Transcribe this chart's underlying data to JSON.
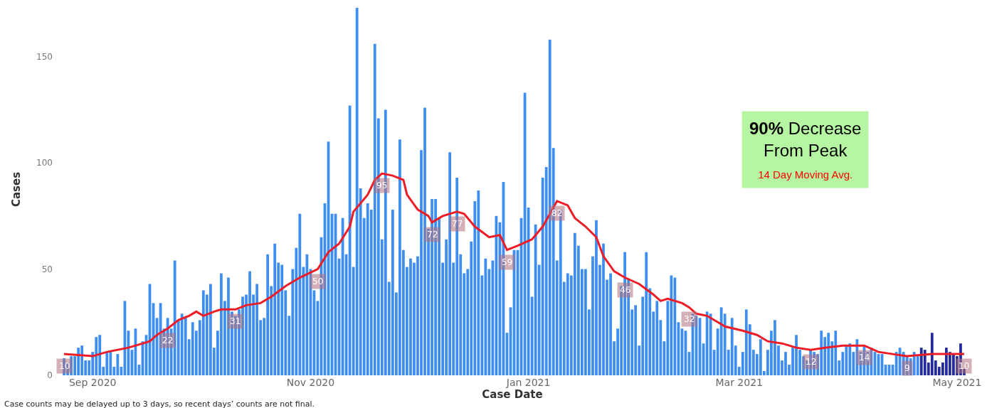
{
  "chart_data": {
    "type": "bar",
    "xlabel": "Case Date",
    "ylabel": "Cases",
    "xlim": [
      "2020-08-21",
      "2021-05-05"
    ],
    "xticks": [
      {
        "value": "2020-09-01",
        "label": "Sep 2020"
      },
      {
        "value": "2020-11-01",
        "label": "Nov 2020"
      },
      {
        "value": "2021-01-01",
        "label": "Jan 2021"
      },
      {
        "value": "2021-03-01",
        "label": "Mar 2021"
      },
      {
        "value": "2021-05-01",
        "label": "May 2021"
      }
    ],
    "ylim": [
      0,
      175
    ],
    "yticks": [
      0,
      50,
      100,
      150
    ],
    "grid": false,
    "annotations": [
      "90% Decrease\nFrom Peak",
      "14 Day Moving Avg.",
      "Case counts may be delayed up to 3 days, so recent days’ counts are not final."
    ],
    "series": [
      {
        "color": "#3d8ef0",
        "x": [
          "2020-08-24",
          "2020-08-25",
          "2020-08-26",
          "2020-08-27",
          "2020-08-28",
          "2020-08-29",
          "2020-08-30",
          "2020-08-31",
          "2020-09-01",
          "2020-09-02",
          "2020-09-03",
          "2020-09-04",
          "2020-09-05",
          "2020-09-06",
          "2020-09-07",
          "2020-09-08",
          "2020-09-09",
          "2020-09-10",
          "2020-09-11",
          "2020-09-12",
          "2020-09-13",
          "2020-09-14",
          "2020-09-15",
          "2020-09-16",
          "2020-09-17",
          "2020-09-18",
          "2020-09-19",
          "2020-09-20",
          "2020-09-21",
          "2020-09-22",
          "2020-09-23",
          "2020-09-24",
          "2020-09-25",
          "2020-09-26",
          "2020-09-27",
          "2020-09-28",
          "2020-09-29",
          "2020-09-30",
          "2020-10-01",
          "2020-10-02",
          "2020-10-03",
          "2020-10-04",
          "2020-10-05",
          "2020-10-06",
          "2020-10-07",
          "2020-10-08",
          "2020-10-09",
          "2020-10-10",
          "2020-10-11",
          "2020-10-12",
          "2020-10-13",
          "2020-10-14",
          "2020-10-15",
          "2020-10-16",
          "2020-10-17",
          "2020-10-18",
          "2020-10-19",
          "2020-10-20",
          "2020-10-21",
          "2020-10-22",
          "2020-10-23",
          "2020-10-24",
          "2020-10-25",
          "2020-10-26",
          "2020-10-27",
          "2020-10-28",
          "2020-10-29",
          "2020-10-30",
          "2020-10-31",
          "2020-11-01",
          "2020-11-02",
          "2020-11-03",
          "2020-11-04",
          "2020-11-05",
          "2020-11-06",
          "2020-11-07",
          "2020-11-08",
          "2020-11-09",
          "2020-11-10",
          "2020-11-11",
          "2020-11-12",
          "2020-11-13",
          "2020-11-14",
          "2020-11-15",
          "2020-11-16",
          "2020-11-17",
          "2020-11-18",
          "2020-11-19",
          "2020-11-20",
          "2020-11-21",
          "2020-11-22",
          "2020-11-23",
          "2020-11-24",
          "2020-11-25",
          "2020-11-26",
          "2020-11-27",
          "2020-11-28",
          "2020-11-29",
          "2020-11-30",
          "2020-12-01",
          "2020-12-02",
          "2020-12-03",
          "2020-12-04",
          "2020-12-05",
          "2020-12-06",
          "2020-12-07",
          "2020-12-08",
          "2020-12-09",
          "2020-12-10",
          "2020-12-11",
          "2020-12-12",
          "2020-12-13",
          "2020-12-14",
          "2020-12-15",
          "2020-12-16",
          "2020-12-17",
          "2020-12-18",
          "2020-12-19",
          "2020-12-20",
          "2020-12-21",
          "2020-12-22",
          "2020-12-23",
          "2020-12-24",
          "2020-12-25",
          "2020-12-26",
          "2020-12-27",
          "2020-12-28",
          "2020-12-29",
          "2020-12-30",
          "2020-12-31",
          "2021-01-01",
          "2021-01-02",
          "2021-01-03",
          "2021-01-04",
          "2021-01-05",
          "2021-01-06",
          "2021-01-07",
          "2021-01-08",
          "2021-01-09",
          "2021-01-10",
          "2021-01-11",
          "2021-01-12",
          "2021-01-13",
          "2021-01-14",
          "2021-01-15",
          "2021-01-16",
          "2021-01-17",
          "2021-01-18",
          "2021-01-19",
          "2021-01-20",
          "2021-01-21",
          "2021-01-22",
          "2021-01-23",
          "2021-01-24",
          "2021-01-25",
          "2021-01-26",
          "2021-01-27",
          "2021-01-28",
          "2021-01-29",
          "2021-01-30",
          "2021-01-31",
          "2021-02-01",
          "2021-02-02",
          "2021-02-03",
          "2021-02-04",
          "2021-02-05",
          "2021-02-06",
          "2021-02-07",
          "2021-02-08",
          "2021-02-09",
          "2021-02-10",
          "2021-02-11",
          "2021-02-12",
          "2021-02-13",
          "2021-02-14",
          "2021-02-15",
          "2021-02-16",
          "2021-02-17",
          "2021-02-18",
          "2021-02-19",
          "2021-02-20",
          "2021-02-21",
          "2021-02-22",
          "2021-02-23",
          "2021-02-24",
          "2021-02-25",
          "2021-02-26",
          "2021-02-27",
          "2021-02-28",
          "2021-03-01",
          "2021-03-02",
          "2021-03-03",
          "2021-03-04",
          "2021-03-05",
          "2021-03-06",
          "2021-03-07",
          "2021-03-08",
          "2021-03-09",
          "2021-03-10",
          "2021-03-11",
          "2021-03-12",
          "2021-03-13",
          "2021-03-14",
          "2021-03-15",
          "2021-03-16",
          "2021-03-17",
          "2021-03-18",
          "2021-03-19",
          "2021-03-20",
          "2021-03-21",
          "2021-03-22",
          "2021-03-23",
          "2021-03-24",
          "2021-03-25",
          "2021-03-26",
          "2021-03-27",
          "2021-03-28",
          "2021-03-29",
          "2021-03-30",
          "2021-03-31",
          "2021-04-01",
          "2021-04-02",
          "2021-04-03",
          "2021-04-04",
          "2021-04-05",
          "2021-04-06",
          "2021-04-07",
          "2021-04-08",
          "2021-04-09",
          "2021-04-10",
          "2021-04-11",
          "2021-04-12",
          "2021-04-13",
          "2021-04-14",
          "2021-04-15",
          "2021-04-16",
          "2021-04-17",
          "2021-04-18",
          "2021-04-19",
          "2021-04-20"
        ],
        "values": [
          8,
          6,
          9,
          9,
          13,
          14,
          7,
          7,
          11,
          18,
          19,
          4,
          11,
          11,
          4,
          10,
          4,
          35,
          21,
          12,
          22,
          5,
          16,
          19,
          43,
          34,
          27,
          34,
          22,
          27,
          22,
          54,
          26,
          29,
          27,
          17,
          25,
          21,
          26,
          40,
          38,
          43,
          13,
          21,
          48,
          35,
          46,
          30,
          28,
          31,
          37,
          38,
          49,
          38,
          43,
          26,
          27,
          57,
          42,
          62,
          53,
          52,
          40,
          28,
          50,
          60,
          76,
          51,
          57,
          50,
          40,
          35,
          65,
          81,
          110,
          76,
          76,
          55,
          74,
          57,
          127,
          51,
          173,
          88,
          74,
          81,
          78,
          156,
          121,
          64,
          125,
          44,
          78,
          39,
          111,
          59,
          51,
          55,
          53,
          56,
          106,
          126,
          69,
          83,
          83,
          74,
          53,
          64,
          105,
          53,
          93,
          57,
          48,
          50,
          63,
          82,
          87,
          47,
          55,
          50,
          54,
          75,
          72,
          91,
          20,
          32,
          59,
          59,
          74,
          133,
          79,
          37,
          71,
          52,
          93,
          98,
          158,
          107,
          54,
          78,
          44,
          48,
          47,
          67,
          61,
          50,
          50,
          31,
          56,
          73,
          52,
          62,
          45,
          48,
          16,
          22,
          42,
          58,
          45,
          31,
          33,
          14,
          37,
          58,
          41,
          30,
          35,
          26,
          16,
          35,
          47,
          46,
          25,
          22,
          21,
          11,
          29,
          28,
          27,
          15,
          30,
          29,
          12,
          22,
          32,
          29,
          12,
          27,
          14,
          4,
          11,
          31,
          24,
          12,
          10,
          17,
          2,
          12,
          21,
          26,
          14,
          7,
          11,
          5,
          13,
          19,
          12,
          9,
          7,
          12,
          11,
          10,
          21,
          18,
          20,
          16,
          21,
          7,
          11,
          14,
          15,
          11,
          17,
          11,
          14,
          11,
          13,
          11,
          10,
          10,
          5,
          5,
          5,
          11,
          13,
          11,
          9,
          8,
          11,
          9
        ]
      },
      {
        "color": "#232a9c",
        "x": [
          "2021-04-21",
          "2021-04-22",
          "2021-04-23",
          "2021-04-24",
          "2021-04-25",
          "2021-04-26",
          "2021-04-27",
          "2021-04-28",
          "2021-04-29",
          "2021-04-30",
          "2021-05-01",
          "2021-05-02",
          "2021-05-03"
        ],
        "values": [
          13,
          12,
          6,
          20,
          7,
          4,
          6,
          13,
          11,
          10,
          9,
          15,
          3
        ]
      },
      {
        "type": "line",
        "color": "#ee1c25",
        "marker": "none",
        "line_style": "solid",
        "x": [
          "2020-08-24",
          "2020-09-01",
          "2020-09-05",
          "2020-09-11",
          "2020-09-17",
          "2020-09-19",
          "2020-09-22",
          "2020-09-25",
          "2020-09-28",
          "2020-09-30",
          "2020-10-02",
          "2020-10-05",
          "2020-10-07",
          "2020-10-11",
          "2020-10-14",
          "2020-10-18",
          "2020-10-21",
          "2020-10-25",
          "2020-10-29",
          "2020-11-03",
          "2020-11-06",
          "2020-11-09",
          "2020-11-12",
          "2020-11-13",
          "2020-11-17",
          "2020-11-19",
          "2020-11-21",
          "2020-11-24",
          "2020-11-27",
          "2020-11-28",
          "2020-12-01",
          "2020-12-04",
          "2020-12-05",
          "2020-12-08",
          "2020-12-12",
          "2020-12-14",
          "2020-12-17",
          "2020-12-21",
          "2020-12-24",
          "2020-12-26",
          "2020-12-29",
          "2021-01-02",
          "2021-01-05",
          "2021-01-07",
          "2021-01-09",
          "2021-01-12",
          "2021-01-14",
          "2021-01-17",
          "2021-01-20",
          "2021-01-22",
          "2021-01-25",
          "2021-01-28",
          "2021-02-01",
          "2021-02-05",
          "2021-02-07",
          "2021-02-09",
          "2021-02-13",
          "2021-02-15",
          "2021-02-17",
          "2021-02-20",
          "2021-02-25",
          "2021-03-02",
          "2021-03-06",
          "2021-03-09",
          "2021-03-13",
          "2021-03-17",
          "2021-03-21",
          "2021-03-25",
          "2021-03-30",
          "2021-04-05",
          "2021-04-09",
          "2021-04-13",
          "2021-04-17",
          "2021-04-24",
          "2021-04-30",
          "2021-05-03"
        ],
        "values": [
          10,
          9,
          11,
          13,
          16,
          19,
          22,
          26,
          28,
          30,
          28,
          30,
          31,
          31,
          33,
          34,
          37,
          42,
          46,
          50,
          58,
          62,
          70,
          77,
          85,
          92,
          95,
          94,
          92,
          85,
          78,
          75,
          72,
          75,
          77,
          76,
          70,
          65,
          66,
          59,
          61,
          64,
          70,
          76,
          82,
          80,
          74,
          70,
          65,
          56,
          49,
          46,
          43,
          38,
          35,
          36,
          34,
          32,
          29,
          28,
          23,
          21,
          19,
          16,
          15,
          13,
          12,
          13,
          14,
          14,
          11,
          10,
          9,
          10,
          10,
          10
        ],
        "value_labels": [
          "10",
          null,
          null,
          null,
          null,
          null,
          "22",
          null,
          null,
          null,
          null,
          null,
          null,
          "31",
          null,
          null,
          null,
          null,
          null,
          "50",
          null,
          null,
          null,
          null,
          null,
          null,
          "95",
          null,
          null,
          null,
          null,
          null,
          "72",
          null,
          "77",
          null,
          null,
          null,
          null,
          "59",
          null,
          null,
          null,
          null,
          "82",
          null,
          null,
          null,
          null,
          null,
          null,
          "46",
          null,
          null,
          null,
          null,
          null,
          "32",
          null,
          null,
          null,
          null,
          null,
          null,
          null,
          null,
          "12",
          null,
          null,
          "14",
          null,
          null,
          "9",
          null,
          null,
          "10"
        ]
      }
    ]
  }
}
